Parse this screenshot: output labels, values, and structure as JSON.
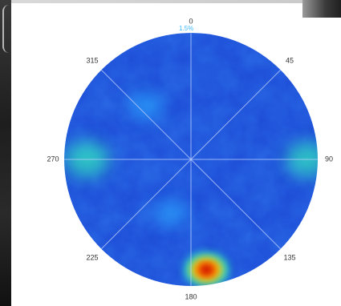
{
  "chart_data": {
    "type": "heatmap",
    "projection": "polar",
    "angle_ticks": [
      "0",
      "45",
      "90",
      "135",
      "180",
      "225",
      "270",
      "315"
    ],
    "scale_label": "1.5%",
    "grid": true,
    "colormap": "jet",
    "hotspots": [
      {
        "angle_deg": 172,
        "radius_frac": 0.88,
        "level": 1.0
      },
      {
        "angle_deg": 270,
        "radius_frac": 0.82,
        "level": 0.45
      },
      {
        "angle_deg": 90,
        "radius_frac": 0.92,
        "level": 0.42
      },
      {
        "angle_deg": 320,
        "radius_frac": 0.55,
        "level": 0.25
      },
      {
        "angle_deg": 200,
        "radius_frac": 0.45,
        "level": 0.22
      }
    ]
  },
  "colors": {
    "background_field": "#1f4fd8",
    "low": "#0b1fb8",
    "mid": "#2aa8ff",
    "high": "#ff2a00",
    "grid": "#bfd3ff"
  }
}
